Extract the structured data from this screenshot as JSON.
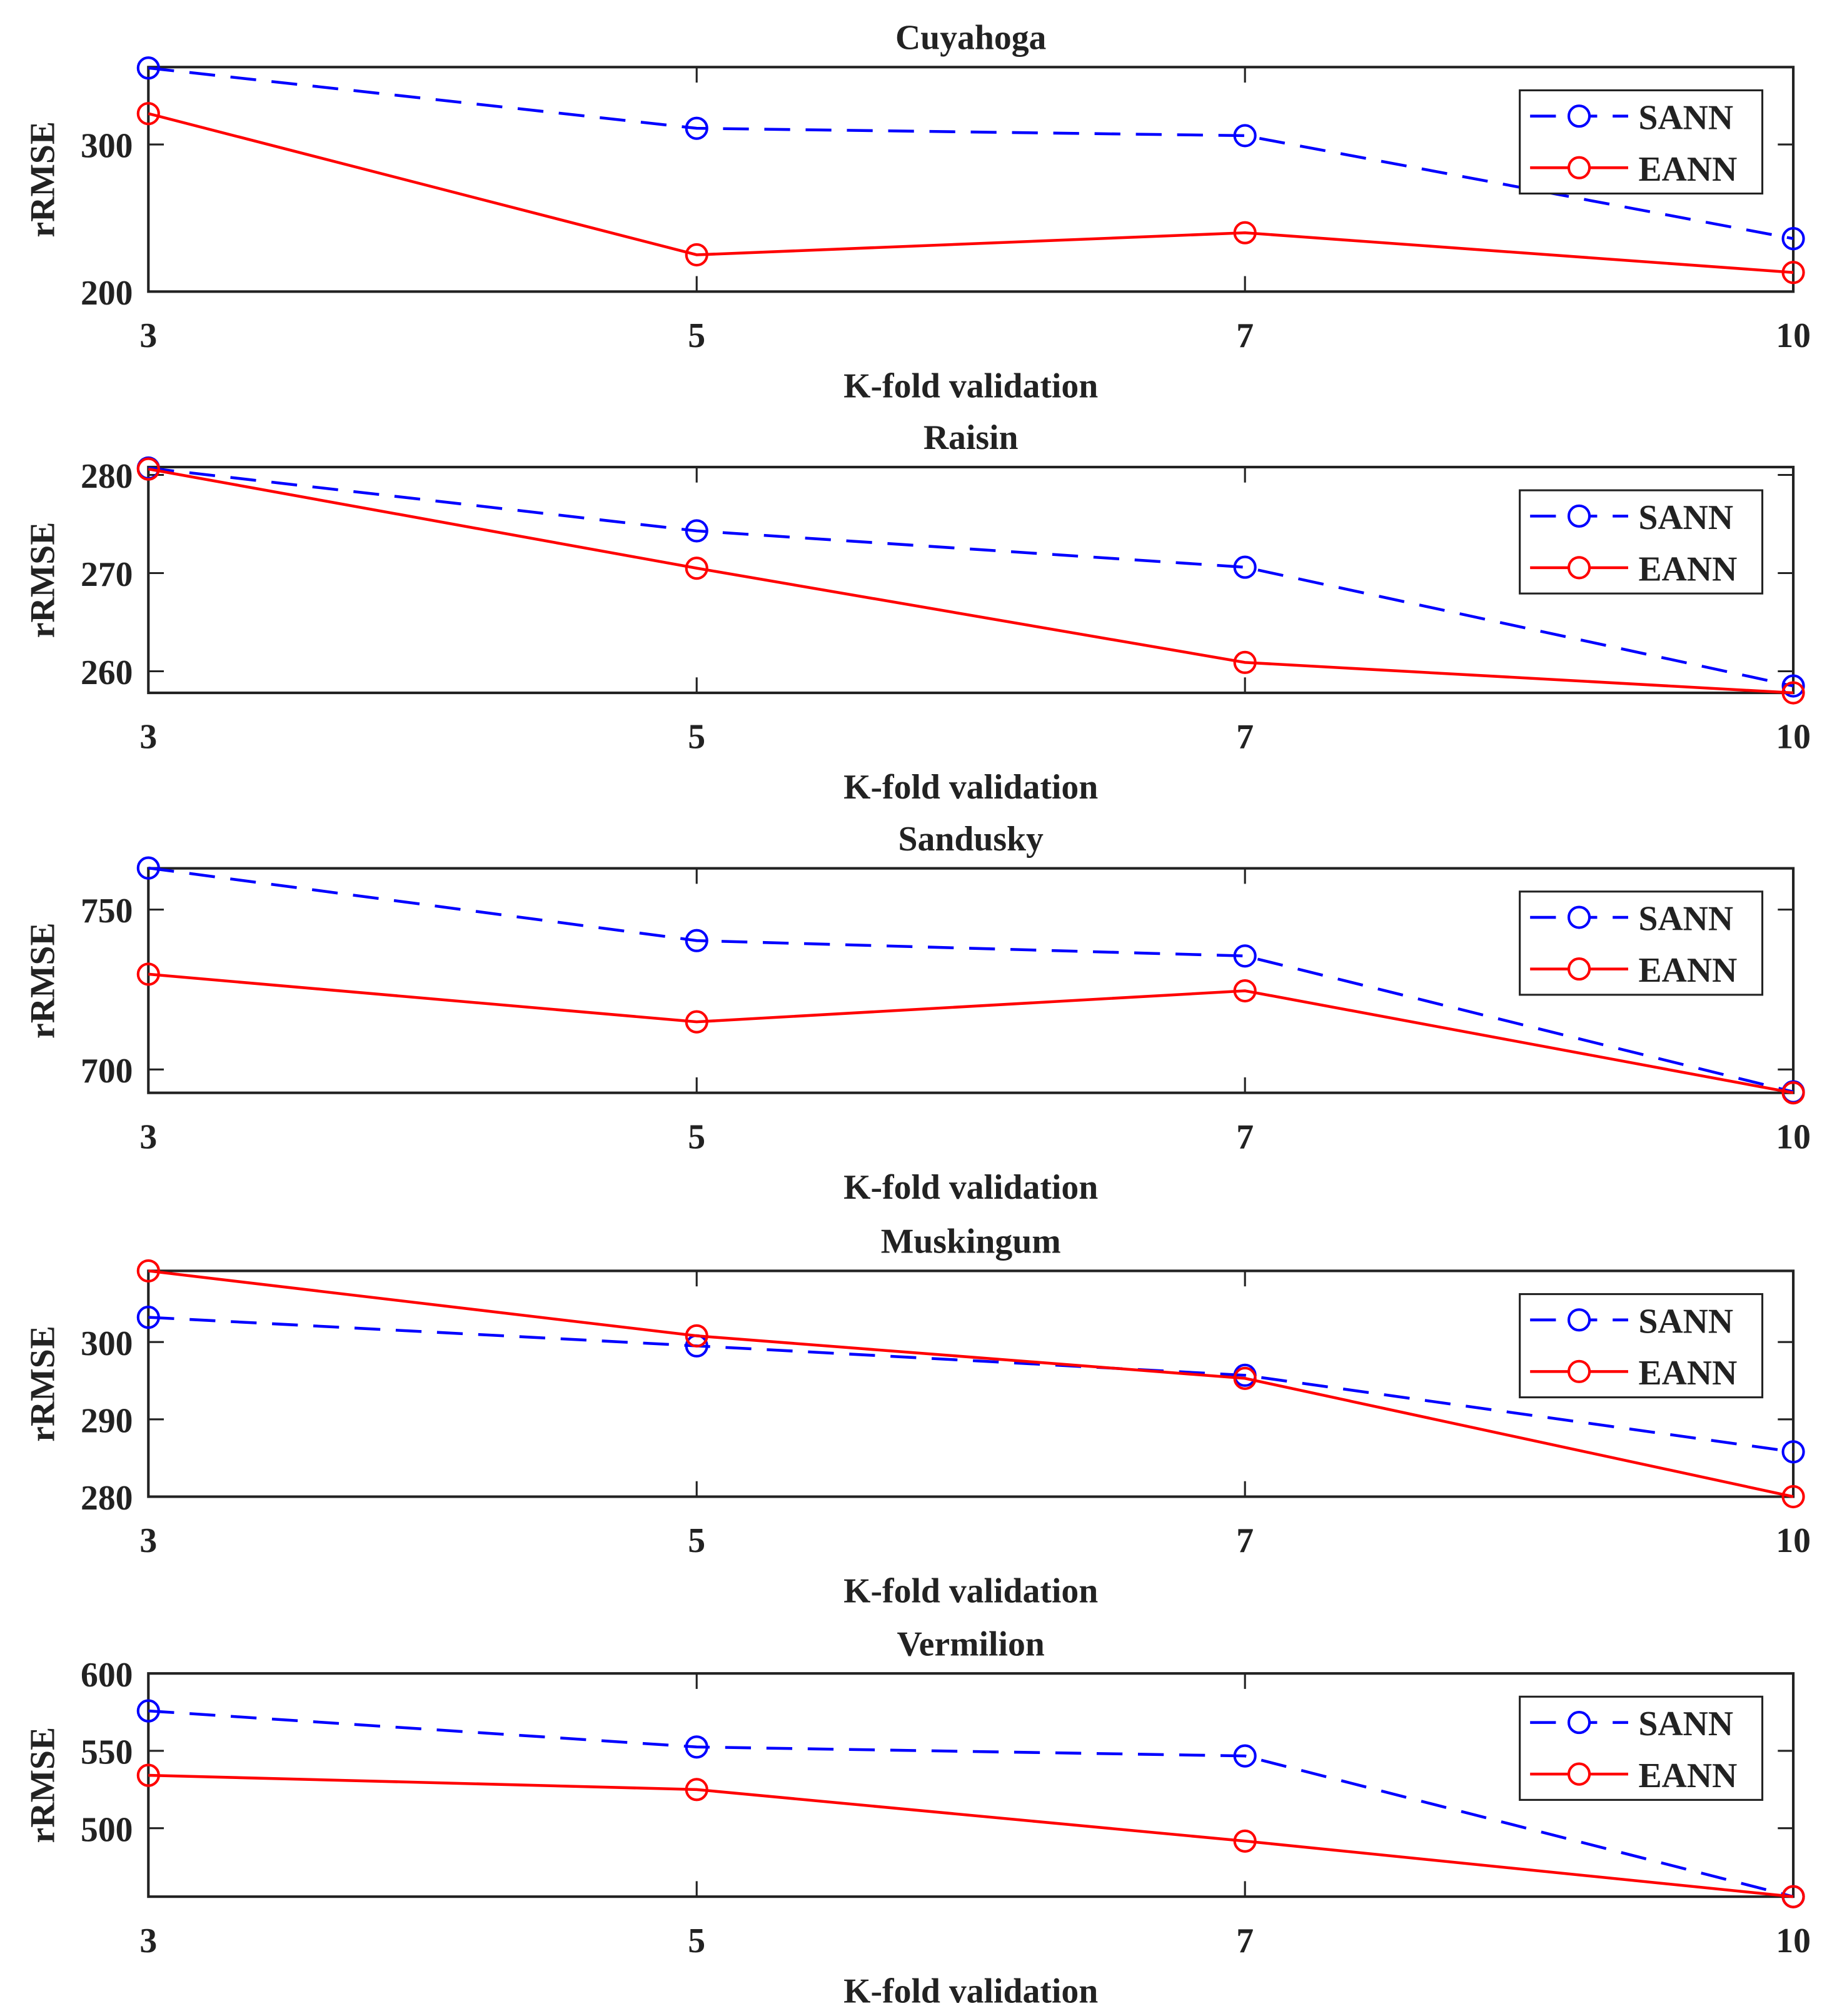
{
  "chart_data": [
    {
      "type": "line",
      "title": "Cuyahoga",
      "xlabel": "K-fold validation",
      "ylabel": "rRMSE",
      "categories": [
        "3",
        "5",
        "7",
        "10"
      ],
      "ylim": [
        200,
        352.6
      ],
      "yticks": [
        200,
        300
      ],
      "series": [
        {
          "name": "SANN",
          "values": [
            352,
            311,
            306,
            236
          ]
        },
        {
          "name": "EANN",
          "values": [
            321,
            225,
            240,
            213
          ]
        }
      ],
      "legend": "top-right"
    },
    {
      "type": "line",
      "title": "Raisin",
      "xlabel": "K-fold validation",
      "ylabel": "rRMSE",
      "categories": [
        "3",
        "5",
        "7",
        "10"
      ],
      "ylim": [
        257.8,
        280.8
      ],
      "yticks": [
        260,
        270,
        280
      ],
      "series": [
        {
          "name": "SANN",
          "values": [
            280.7,
            274.3,
            270.6,
            258.5
          ]
        },
        {
          "name": "EANN",
          "values": [
            280.6,
            270.5,
            260.9,
            257.8
          ]
        }
      ],
      "legend": "top-right"
    },
    {
      "type": "line",
      "title": "Sandusky",
      "xlabel": "K-fold validation",
      "ylabel": "rRMSE",
      "categories": [
        "3",
        "5",
        "7",
        "10"
      ],
      "ylim": [
        692.7,
        762.9
      ],
      "yticks": [
        700,
        750
      ],
      "series": [
        {
          "name": "SANN",
          "values": [
            763,
            740.3,
            735.5,
            693
          ]
        },
        {
          "name": "EANN",
          "values": [
            729.8,
            714.9,
            724.6,
            692.7
          ]
        }
      ],
      "legend": "top-right"
    },
    {
      "type": "line",
      "title": "Muskingum",
      "xlabel": "K-fold validation",
      "ylabel": "rRMSE",
      "categories": [
        "3",
        "5",
        "7",
        "10"
      ],
      "ylim": [
        280,
        309.2
      ],
      "yticks": [
        280,
        290,
        300
      ],
      "series": [
        {
          "name": "SANN",
          "values": [
            303.2,
            299.5,
            295.7,
            285.8
          ]
        },
        {
          "name": "EANN",
          "values": [
            309.2,
            300.8,
            295.3,
            280
          ]
        }
      ],
      "legend": "top-right"
    },
    {
      "type": "line",
      "title": "Vermilion",
      "xlabel": "K-fold validation",
      "ylabel": "rRMSE",
      "categories": [
        "3",
        "5",
        "7",
        "10"
      ],
      "ylim": [
        455.8,
        600
      ],
      "yticks": [
        500,
        550,
        600
      ],
      "series": [
        {
          "name": "SANN",
          "values": [
            575.8,
            552.5,
            546.7,
            455.8
          ]
        },
        {
          "name": "EANN",
          "values": [
            534.2,
            525,
            491.7,
            455.8
          ]
        }
      ],
      "legend": "top-right"
    }
  ],
  "colors": {
    "SANN": "#0000ff",
    "EANN": "#ff0000",
    "axis": "#222222"
  }
}
